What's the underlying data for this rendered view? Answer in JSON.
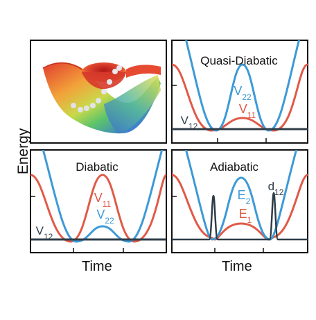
{
  "axes": {
    "y_label": "Energy",
    "x_label_left": "Time",
    "x_label_right": "Time"
  },
  "colors": {
    "red": "#e05a48",
    "blue": "#3d9ad6",
    "dark": "#2f3d49",
    "frame": "#111111"
  },
  "panels": {
    "quasi_diabatic": {
      "title": "Quasi-Diabatic",
      "labels": {
        "v22": "V22",
        "v11": "V11",
        "v12": "V12"
      }
    },
    "diabatic": {
      "title": "Diabatic",
      "labels": {
        "v11": "V11",
        "v22": "V22",
        "v12": "V12"
      }
    },
    "adiabatic": {
      "title": "Adiabatic",
      "labels": {
        "e2": "E2",
        "e1": "E1",
        "d12": "d12"
      }
    }
  }
}
